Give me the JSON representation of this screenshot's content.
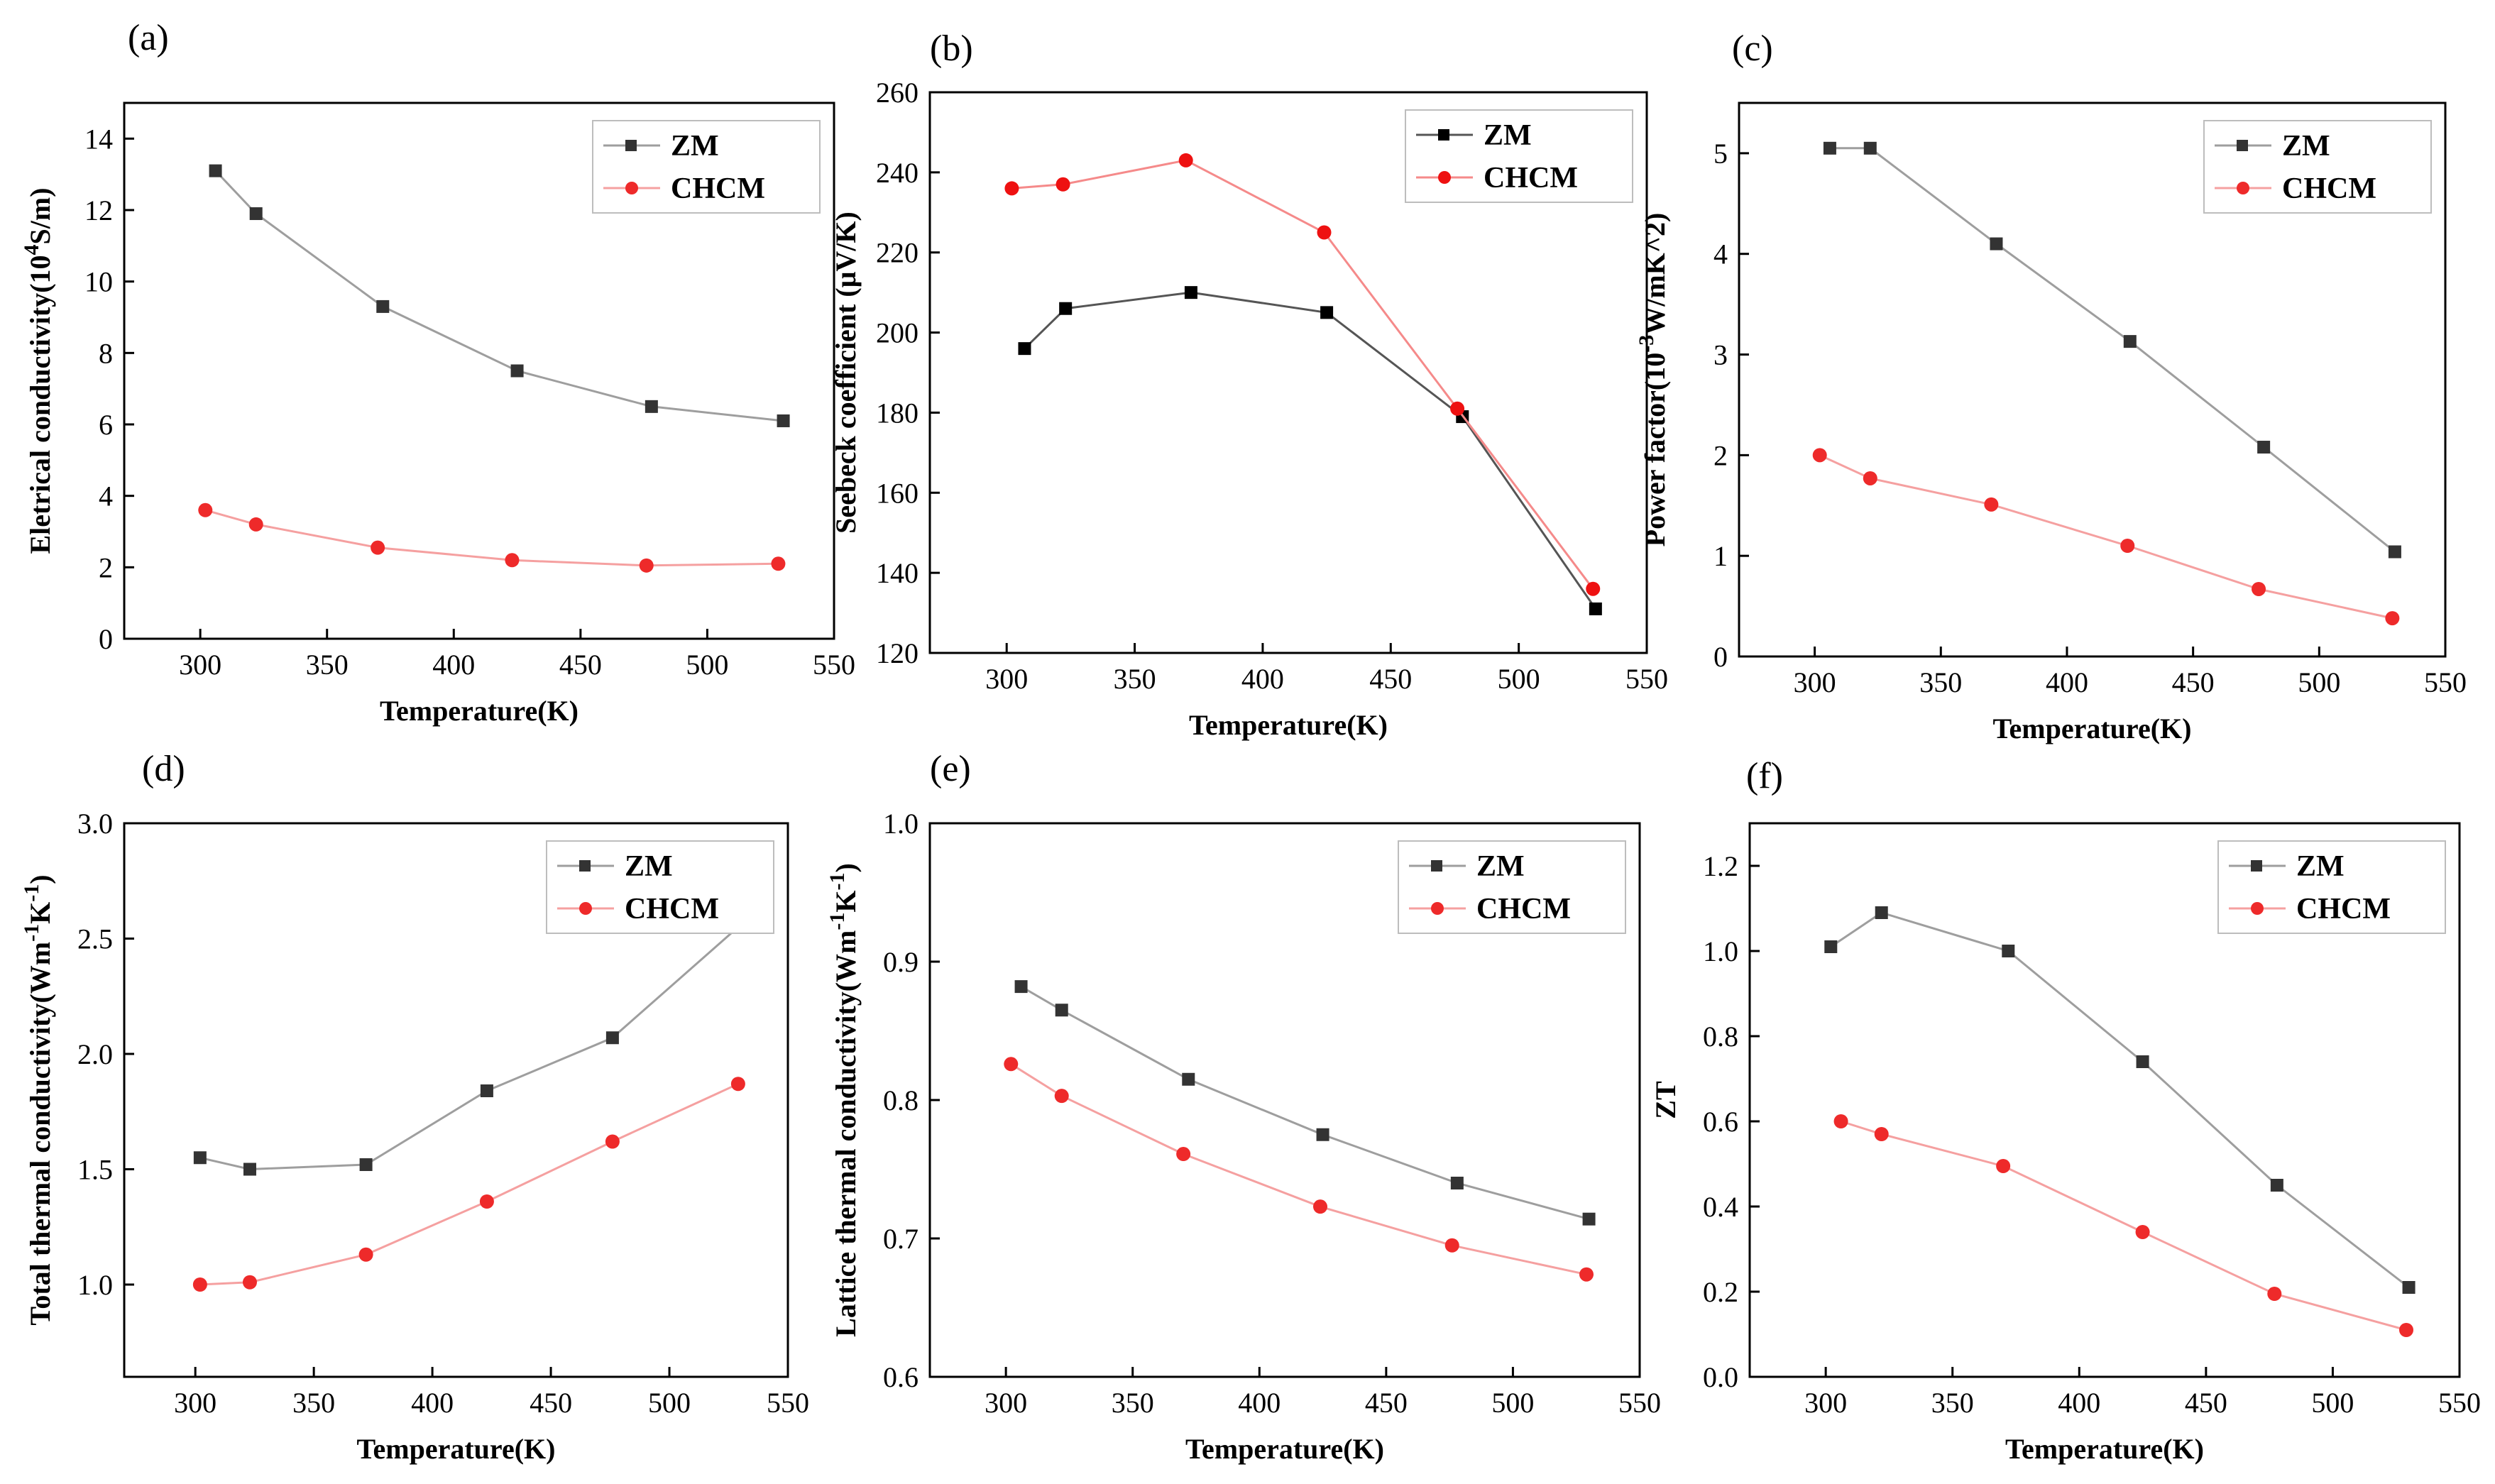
{
  "chart_data": [
    {
      "type": "line",
      "panel_label": "(a)",
      "xlabel": "Temperature(K)",
      "ylabel_parts": [
        {
          "t": "Eletrical conductivity(10"
        },
        {
          "t": "4",
          "sup": true
        },
        {
          "t": "S/m)"
        }
      ],
      "xlim": [
        270,
        550
      ],
      "ylim": [
        0,
        15
      ],
      "xticks": [
        300,
        350,
        400,
        450,
        500,
        550
      ],
      "yticks": [
        0,
        2,
        4,
        6,
        8,
        10,
        12,
        14
      ],
      "legend_position": "top-right",
      "series": [
        {
          "name": "ZM",
          "color": "#333333",
          "line_color": "#9e9e9e",
          "marker": "square",
          "x": [
            306,
            322,
            372,
            425,
            478,
            530
          ],
          "y": [
            13.1,
            11.9,
            9.3,
            7.5,
            6.5,
            6.1
          ]
        },
        {
          "name": "CHCM",
          "color": "#ee2a2a",
          "line_color": "#f5a0a0",
          "marker": "circle",
          "x": [
            302,
            322,
            370,
            423,
            476,
            528
          ],
          "y": [
            3.6,
            3.2,
            2.55,
            2.2,
            2.05,
            2.1
          ]
        }
      ]
    },
    {
      "type": "line",
      "panel_label": "(b)",
      "xlabel": "Temperature(K)",
      "ylabel_parts": [
        {
          "t": "Seebeck coefficient (μV/K)"
        }
      ],
      "xlim": [
        270,
        550
      ],
      "ylim": [
        120,
        260
      ],
      "xticks": [
        300,
        350,
        400,
        450,
        500,
        550
      ],
      "yticks": [
        120,
        140,
        160,
        180,
        200,
        220,
        240,
        260
      ],
      "legend_position": "top-right",
      "series": [
        {
          "name": "ZM",
          "color": "#000000",
          "line_color": "#555555",
          "marker": "square",
          "x": [
            307,
            323,
            372,
            425,
            478,
            530
          ],
          "y": [
            196,
            206,
            210,
            205,
            179,
            131
          ]
        },
        {
          "name": "CHCM",
          "color": "#ee1111",
          "line_color": "#f58a8a",
          "marker": "circle",
          "x": [
            302,
            322,
            370,
            424,
            476,
            529
          ],
          "y": [
            236,
            237,
            243,
            225,
            181,
            136
          ]
        }
      ]
    },
    {
      "type": "line",
      "panel_label": "(c)",
      "xlabel": "Temperature(K)",
      "ylabel_parts": [
        {
          "t": "Power factor(10"
        },
        {
          "t": "-3",
          "sup": true
        },
        {
          "t": "W/mK^2)"
        }
      ],
      "xlim": [
        270,
        550
      ],
      "ylim": [
        0,
        5.5
      ],
      "xticks": [
        300,
        350,
        400,
        450,
        500,
        550
      ],
      "yticks": [
        0,
        1,
        2,
        3,
        4,
        5
      ],
      "legend_position": "top-right",
      "series": [
        {
          "name": "ZM",
          "color": "#333333",
          "line_color": "#9e9e9e",
          "marker": "square",
          "x": [
            306,
            322,
            372,
            425,
            478,
            530
          ],
          "y": [
            5.05,
            5.05,
            4.1,
            3.13,
            2.08,
            1.04
          ]
        },
        {
          "name": "CHCM",
          "color": "#ee2a2a",
          "line_color": "#f5a0a0",
          "marker": "circle",
          "x": [
            302,
            322,
            370,
            424,
            476,
            529
          ],
          "y": [
            2.0,
            1.77,
            1.51,
            1.1,
            0.67,
            0.38
          ]
        }
      ]
    },
    {
      "type": "line",
      "panel_label": "(d)",
      "xlabel": "Temperature(K)",
      "ylabel_parts": [
        {
          "t": "Total thermal conductivity(Wm"
        },
        {
          "t": "-1",
          "sup": true
        },
        {
          "t": "K"
        },
        {
          "t": "-1",
          "sup": true
        },
        {
          "t": ")"
        }
      ],
      "xlim": [
        270,
        550
      ],
      "ylim": [
        0.6,
        3.0
      ],
      "xticks": [
        300,
        350,
        400,
        450,
        500,
        550
      ],
      "yticks": [
        1.0,
        1.5,
        2.0,
        2.5,
        3.0
      ],
      "ytick_labels": [
        "1.0",
        "1.5",
        "2.0",
        "2.5",
        "3.0"
      ],
      "legend_position": "top-right",
      "series": [
        {
          "name": "ZM",
          "color": "#333333",
          "line_color": "#9e9e9e",
          "marker": "square",
          "x": [
            302,
            323,
            372,
            423,
            476,
            529
          ],
          "y": [
            1.55,
            1.5,
            1.52,
            1.84,
            2.07,
            2.55
          ]
        },
        {
          "name": "CHCM",
          "color": "#ee2a2a",
          "line_color": "#f5a0a0",
          "marker": "circle",
          "x": [
            302,
            323,
            372,
            423,
            476,
            529
          ],
          "y": [
            1.0,
            1.01,
            1.13,
            1.36,
            1.62,
            1.87
          ]
        }
      ]
    },
    {
      "type": "line",
      "panel_label": "(e)",
      "xlabel": "Temperature(K)",
      "ylabel_parts": [
        {
          "t": "Lattice thermal conductivity(Wm"
        },
        {
          "t": "-1",
          "sup": true
        },
        {
          "t": "K"
        },
        {
          "t": "-1",
          "sup": true
        },
        {
          "t": ")"
        }
      ],
      "xlim": [
        270,
        550
      ],
      "ylim": [
        0.6,
        1.0
      ],
      "xticks": [
        300,
        350,
        400,
        450,
        500,
        550
      ],
      "yticks": [
        0.6,
        0.7,
        0.8,
        0.9,
        1.0
      ],
      "ytick_labels": [
        "0.6",
        "0.7",
        "0.8",
        "0.9",
        "1.0"
      ],
      "legend_position": "top-right",
      "series": [
        {
          "name": "ZM",
          "color": "#333333",
          "line_color": "#9e9e9e",
          "marker": "square",
          "x": [
            306,
            322,
            372,
            425,
            478,
            530
          ],
          "y": [
            0.882,
            0.865,
            0.815,
            0.775,
            0.74,
            0.714
          ]
        },
        {
          "name": "CHCM",
          "color": "#ee2a2a",
          "line_color": "#f5a0a0",
          "marker": "circle",
          "x": [
            302,
            322,
            370,
            424,
            476,
            529
          ],
          "y": [
            0.826,
            0.803,
            0.761,
            0.723,
            0.695,
            0.674
          ]
        }
      ]
    },
    {
      "type": "line",
      "panel_label": "(f)",
      "xlabel": "Temperature(K)",
      "ylabel_parts": [
        {
          "t": "ZT"
        }
      ],
      "xlim": [
        270,
        550
      ],
      "ylim": [
        0,
        1.3
      ],
      "xticks": [
        300,
        350,
        400,
        450,
        500,
        550
      ],
      "yticks": [
        0.0,
        0.2,
        0.4,
        0.6,
        0.8,
        1.0,
        1.2
      ],
      "ytick_labels": [
        "0.0",
        "0.2",
        "0.4",
        "0.6",
        "0.8",
        "1.0",
        "1.2"
      ],
      "legend_position": "top-right",
      "series": [
        {
          "name": "ZM",
          "color": "#333333",
          "line_color": "#9e9e9e",
          "marker": "square",
          "x": [
            302,
            322,
            372,
            425,
            478,
            530
          ],
          "y": [
            1.01,
            1.09,
            1.0,
            0.74,
            0.45,
            0.21
          ]
        },
        {
          "name": "CHCM",
          "color": "#ee2a2a",
          "line_color": "#f5a0a0",
          "marker": "circle",
          "x": [
            306,
            322,
            370,
            425,
            477,
            529
          ],
          "y": [
            0.6,
            0.57,
            0.495,
            0.34,
            0.195,
            0.11
          ]
        }
      ]
    }
  ]
}
